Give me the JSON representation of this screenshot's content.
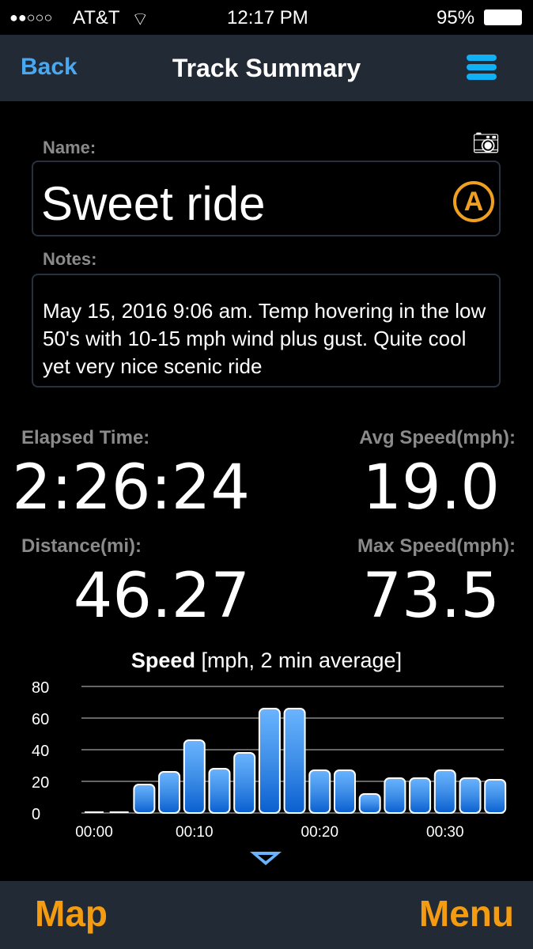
{
  "status": {
    "signal": "●●○○○",
    "carrier": "AT&T",
    "time": "12:17 PM",
    "battery": "95%"
  },
  "nav": {
    "back": "Back",
    "title": "Track Summary",
    "menu_icon": "hamburger-icon"
  },
  "form": {
    "name_label": "Name:",
    "name_value": "Sweet ride",
    "auto_badge": "A",
    "notes_label": "Notes:",
    "notes_value": "May 15, 2016  9:06 am. Temp hovering in the low 50's with 10-15 mph wind plus gust. Quite cool yet very nice scenic ride"
  },
  "stats": {
    "elapsed_label": "Elapsed Time:",
    "elapsed": "2:26:24",
    "avg_label": "Avg Speed(mph):",
    "avg": "19.0",
    "dist_label": "Distance(mi):",
    "dist": "46.27",
    "max_label": "Max Speed(mph):",
    "max": "73.5"
  },
  "chart_title_bold": "Speed",
  "chart_title_rest": " [mph, 2 min average]",
  "chart_data": {
    "type": "bar",
    "title": "Speed [mph, 2 min average]",
    "ylim": [
      0,
      80
    ],
    "yticks": [
      0,
      20,
      40,
      60,
      80
    ],
    "xtick_labels": [
      {
        "label": "00:00",
        "bar": 0
      },
      {
        "label": "00:10",
        "bar": 4
      },
      {
        "label": "00:20",
        "bar": 9
      },
      {
        "label": "00:30",
        "bar": 14
      }
    ],
    "values": [
      0,
      0,
      18,
      26,
      46,
      28,
      38,
      66,
      66,
      27,
      27,
      12,
      22,
      22,
      27,
      22,
      21
    ],
    "grid": true,
    "color": "#3d8fe8"
  },
  "bottom": {
    "map": "Map",
    "menu": "Menu"
  }
}
